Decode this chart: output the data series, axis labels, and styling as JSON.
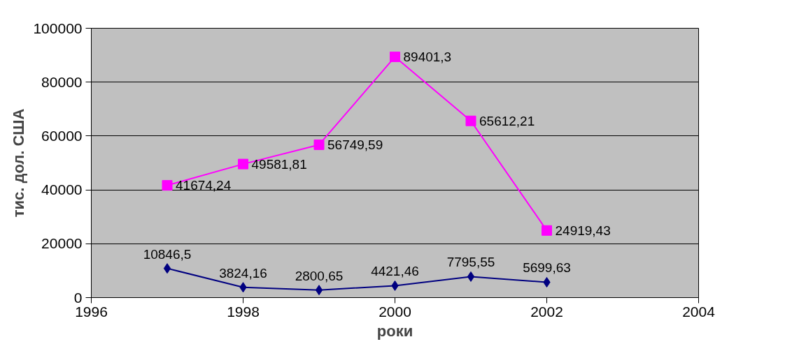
{
  "chart_data": {
    "type": "line",
    "xlabel": "роки",
    "ylabel": "тис. дол. США",
    "x": [
      1997,
      1998,
      1999,
      2000,
      2001,
      2002
    ],
    "series": [
      {
        "color": "#000080",
        "marker": "diamond",
        "values": [
          10846.5,
          3824.16,
          2800.65,
          4421.46,
          7795.55,
          5699.63
        ],
        "value_labels": [
          "10846,5",
          "3824,16",
          "2800,65",
          "4421,46",
          "7795,55",
          "5699,63"
        ]
      },
      {
        "color": "#ff00ff",
        "marker": "square",
        "values": [
          41674.24,
          49581.81,
          56749.59,
          89401.3,
          65612.21,
          24919.43
        ],
        "value_labels": [
          "41674,24",
          "49581,81",
          "56749,59",
          "89401,3",
          "65612,21",
          "24919,43"
        ]
      }
    ],
    "xlim": [
      1996,
      2004
    ],
    "xticks": [
      1996,
      1998,
      2000,
      2002,
      2004
    ],
    "ylim": [
      0,
      100000
    ],
    "yticks": [
      0,
      20000,
      40000,
      60000,
      80000,
      100000
    ],
    "grid": "y"
  }
}
